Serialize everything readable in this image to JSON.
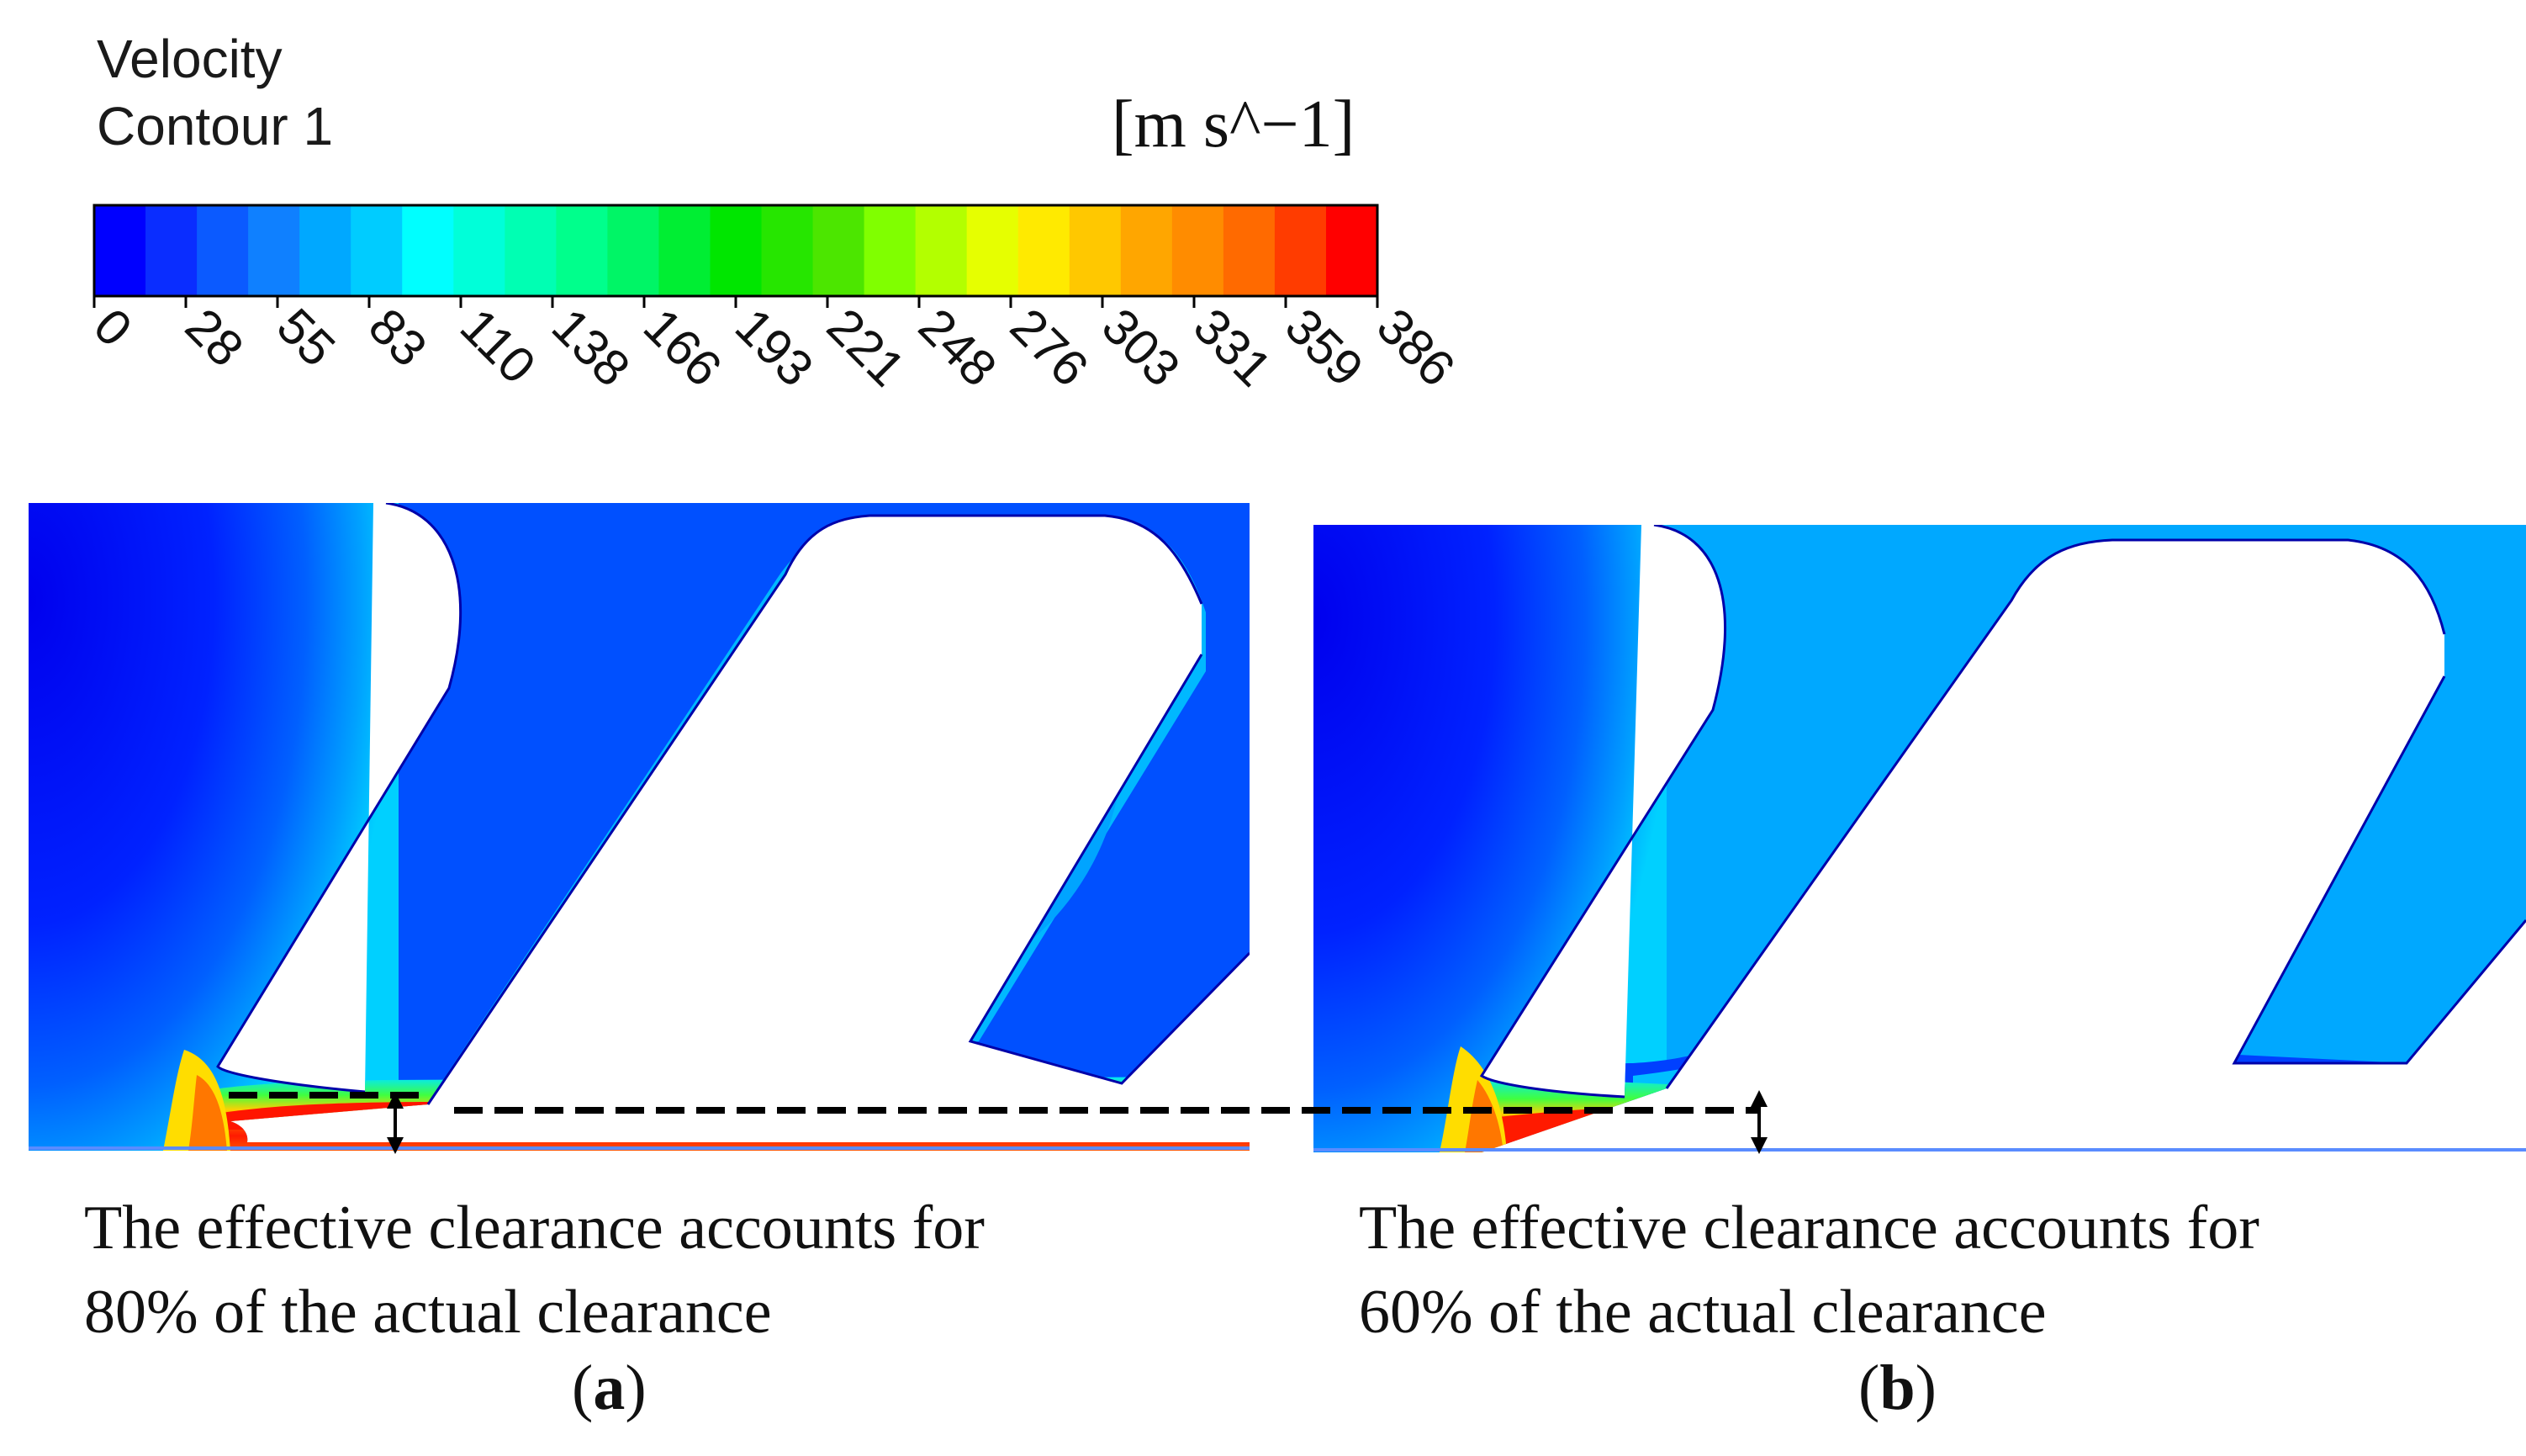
{
  "legend": {
    "variable": "Velocity",
    "name": "Contour 1",
    "units": "[m s^−1]",
    "ticks": [
      "0",
      "28",
      "55",
      "83",
      "110",
      "138",
      "166",
      "193",
      "221",
      "248",
      "276",
      "303",
      "331",
      "359",
      "386"
    ],
    "value_range": [
      0,
      386
    ],
    "color_bands": [
      "#0000ff",
      "#0a2dff",
      "#0b5aff",
      "#0f80ff",
      "#00a8ff",
      "#00ccff",
      "#00ffff",
      "#00ffd9",
      "#00ffb3",
      "#00ff8c",
      "#00f566",
      "#00ee33",
      "#00e600",
      "#26e600",
      "#4ce600",
      "#80ff00",
      "#b3ff00",
      "#e6ff00",
      "#ffea00",
      "#ffc800",
      "#ffa600",
      "#ff8c00",
      "#ff6a00",
      "#ff3c00",
      "#ff0000"
    ]
  },
  "panels": [
    {
      "id": "a",
      "caption_line1": "The effective clearance accounts for",
      "caption_line2": "80% of the actual clearance",
      "label_letter": "a",
      "effective_clearance_percent": 80
    },
    {
      "id": "b",
      "caption_line1": "The effective clearance accounts for",
      "caption_line2": "60% of the actual clearance",
      "label_letter": "b",
      "effective_clearance_percent": 60
    }
  ],
  "colors": {
    "low": "#0000ff",
    "mid_low": "#00bfff",
    "mid": "#00ff80",
    "high": "#ffee00",
    "max": "#ff0000",
    "dashed_line": "#000000"
  }
}
